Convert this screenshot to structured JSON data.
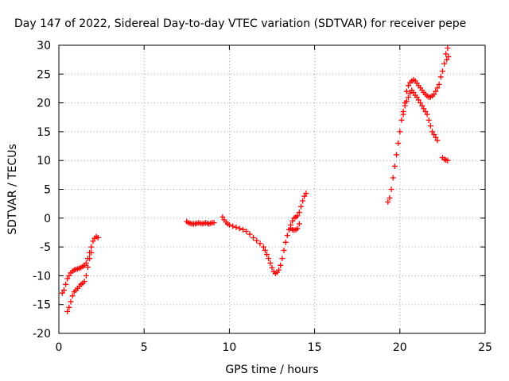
{
  "chart_data": {
    "type": "scatter",
    "title": "Day 147 of 2022, Sidereal Day-to-day VTEC variation (SDTVAR) for receiver pepe",
    "xlabel": "GPS time / hours",
    "ylabel": "SDTVAR / TECUs",
    "xlim": [
      0,
      25
    ],
    "ylim": [
      -20,
      30
    ],
    "xticks": [
      "0",
      "5",
      "10",
      "15",
      "20",
      "25"
    ],
    "yticks": [
      "-20",
      "-15",
      "-10",
      "-5",
      "0",
      "5",
      "10",
      "15",
      "20",
      "25",
      "30"
    ],
    "grid": true,
    "marker": "+",
    "color": "#ff0000",
    "series": [
      {
        "points": [
          [
            0.2,
            -13.0
          ],
          [
            0.3,
            -12.5
          ],
          [
            0.4,
            -11.5
          ],
          [
            0.5,
            -10.5
          ],
          [
            0.6,
            -10.0
          ],
          [
            0.7,
            -9.5
          ],
          [
            0.8,
            -9.2
          ],
          [
            0.9,
            -9.0
          ],
          [
            1.0,
            -8.9
          ],
          [
            1.1,
            -8.8
          ],
          [
            1.2,
            -8.7
          ],
          [
            1.3,
            -8.6
          ],
          [
            1.4,
            -8.4
          ],
          [
            1.5,
            -8.2
          ],
          [
            1.6,
            -7.8
          ],
          [
            1.7,
            -7.0
          ],
          [
            1.8,
            -6.0
          ],
          [
            1.9,
            -5.0
          ],
          [
            2.0,
            -4.0
          ],
          [
            2.1,
            -3.5
          ],
          [
            2.2,
            -3.2
          ],
          [
            2.3,
            -3.4
          ],
          [
            0.5,
            -16.2
          ],
          [
            0.6,
            -15.5
          ],
          [
            0.7,
            -14.5
          ],
          [
            0.8,
            -13.5
          ],
          [
            0.9,
            -12.8
          ],
          [
            1.0,
            -12.5
          ],
          [
            1.1,
            -12.2
          ],
          [
            1.2,
            -11.8
          ],
          [
            1.3,
            -11.5
          ],
          [
            1.4,
            -11.3
          ],
          [
            1.5,
            -11.0
          ],
          [
            1.6,
            -10.0
          ],
          [
            1.7,
            -8.5
          ],
          [
            1.8,
            -7.0
          ],
          [
            1.9,
            -6.0
          ],
          [
            7.5,
            -0.6
          ],
          [
            7.6,
            -0.8
          ],
          [
            7.7,
            -0.9
          ],
          [
            7.8,
            -1.0
          ],
          [
            7.9,
            -1.0
          ],
          [
            8.0,
            -1.0
          ],
          [
            8.1,
            -0.9
          ],
          [
            8.2,
            -0.8
          ],
          [
            8.3,
            -0.9
          ],
          [
            8.4,
            -1.0
          ],
          [
            8.5,
            -0.9
          ],
          [
            8.6,
            -0.8
          ],
          [
            8.7,
            -0.9
          ],
          [
            8.8,
            -1.0
          ],
          [
            8.9,
            -0.9
          ],
          [
            9.0,
            -0.8
          ],
          [
            9.1,
            -0.8
          ],
          [
            9.6,
            0.2
          ],
          [
            9.7,
            -0.3
          ],
          [
            9.8,
            -0.7
          ],
          [
            9.9,
            -1.0
          ],
          [
            10.0,
            -1.2
          ],
          [
            10.2,
            -1.4
          ],
          [
            10.4,
            -1.6
          ],
          [
            10.6,
            -1.8
          ],
          [
            10.8,
            -2.0
          ],
          [
            11.0,
            -2.3
          ],
          [
            11.2,
            -2.8
          ],
          [
            11.4,
            -3.4
          ],
          [
            11.6,
            -3.9
          ],
          [
            11.8,
            -4.4
          ],
          [
            12.0,
            -5.0
          ],
          [
            12.1,
            -5.6
          ],
          [
            12.2,
            -6.3
          ],
          [
            12.3,
            -7.0
          ],
          [
            12.4,
            -7.8
          ],
          [
            12.5,
            -8.6
          ],
          [
            12.6,
            -9.3
          ],
          [
            12.7,
            -9.6
          ],
          [
            12.8,
            -9.4
          ],
          [
            12.9,
            -9.0
          ],
          [
            13.0,
            -8.2
          ],
          [
            13.1,
            -7.0
          ],
          [
            13.2,
            -5.6
          ],
          [
            13.3,
            -4.2
          ],
          [
            13.4,
            -3.0
          ],
          [
            13.5,
            -2.0
          ],
          [
            13.6,
            -1.2
          ],
          [
            13.7,
            -0.5
          ],
          [
            13.8,
            0.0
          ],
          [
            13.9,
            0.2
          ],
          [
            14.0,
            0.4
          ],
          [
            14.1,
            1.0
          ],
          [
            14.2,
            2.0
          ],
          [
            14.3,
            3.0
          ],
          [
            14.4,
            3.8
          ],
          [
            14.5,
            4.3
          ],
          [
            13.6,
            -1.8
          ],
          [
            13.7,
            -2.0
          ],
          [
            13.8,
            -2.1
          ],
          [
            13.9,
            -2.0
          ],
          [
            14.0,
            -1.8
          ],
          [
            14.1,
            -1.0
          ],
          [
            19.3,
            2.8
          ],
          [
            19.4,
            3.5
          ],
          [
            19.5,
            5.0
          ],
          [
            19.6,
            7.0
          ],
          [
            19.7,
            9.0
          ],
          [
            19.8,
            11.0
          ],
          [
            19.9,
            13.0
          ],
          [
            20.0,
            15.0
          ],
          [
            20.1,
            17.0
          ],
          [
            20.2,
            18.5
          ],
          [
            20.3,
            19.5
          ],
          [
            20.4,
            20.3
          ],
          [
            20.5,
            21.0
          ],
          [
            20.6,
            21.7
          ],
          [
            20.7,
            22.2
          ],
          [
            20.8,
            21.8
          ],
          [
            20.9,
            21.3
          ],
          [
            21.0,
            21.0
          ],
          [
            21.1,
            20.5
          ],
          [
            21.2,
            20.0
          ],
          [
            21.3,
            19.5
          ],
          [
            21.4,
            19.0
          ],
          [
            21.5,
            18.5
          ],
          [
            21.6,
            18.0
          ],
          [
            21.7,
            17.0
          ],
          [
            21.8,
            16.0
          ],
          [
            21.9,
            15.0
          ],
          [
            22.0,
            14.5
          ],
          [
            22.1,
            14.0
          ],
          [
            22.2,
            13.5
          ],
          [
            20.2,
            18.0
          ],
          [
            20.3,
            20.0
          ],
          [
            20.4,
            22.0
          ],
          [
            20.5,
            23.0
          ],
          [
            20.6,
            23.5
          ],
          [
            20.7,
            23.8
          ],
          [
            20.8,
            24.0
          ],
          [
            20.9,
            23.8
          ],
          [
            21.0,
            23.4
          ],
          [
            21.1,
            23.0
          ],
          [
            21.2,
            22.6
          ],
          [
            21.3,
            22.2
          ],
          [
            21.4,
            21.8
          ],
          [
            21.5,
            21.5
          ],
          [
            21.6,
            21.2
          ],
          [
            21.7,
            21.0
          ],
          [
            21.8,
            21.0
          ],
          [
            21.9,
            21.2
          ],
          [
            22.0,
            21.5
          ],
          [
            22.1,
            22.0
          ],
          [
            22.2,
            22.6
          ],
          [
            22.3,
            23.2
          ],
          [
            22.4,
            24.5
          ],
          [
            22.5,
            25.5
          ],
          [
            22.6,
            26.8
          ],
          [
            22.7,
            28.5
          ],
          [
            22.8,
            29.5
          ],
          [
            22.75,
            27.5
          ],
          [
            22.85,
            28.0
          ],
          [
            22.5,
            10.5
          ],
          [
            22.6,
            10.2
          ],
          [
            22.7,
            10.1
          ],
          [
            22.8,
            10.0
          ]
        ]
      }
    ]
  }
}
